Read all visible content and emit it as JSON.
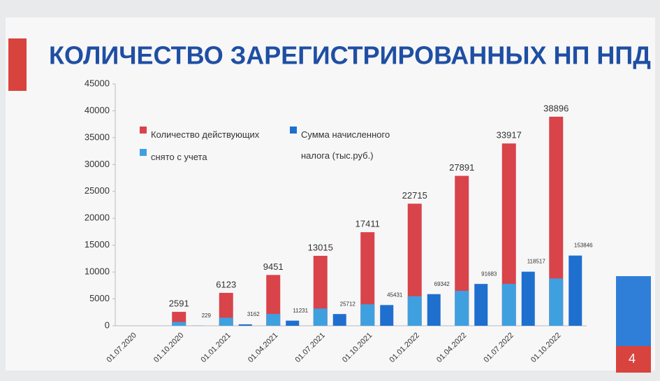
{
  "chart_data": {
    "type": "bar",
    "title": "КОЛИЧЕСТВО ЗАРЕГИСТРИРОВАННЫХ НП НПД",
    "page_number": "4",
    "categories": [
      "01.07.2020",
      "01.10.2020",
      "01.01.2021",
      "01.04.2021",
      "01.07.2021",
      "01.10.2021",
      "01.01.2022",
      "01.04.2022",
      "01.07.2022",
      "01.10.2022"
    ],
    "series": [
      {
        "name": "Количество действующих",
        "color": "#d9434a",
        "values": [
          null,
          2591,
          6123,
          9451,
          13015,
          17411,
          22715,
          27891,
          33917,
          38896
        ]
      },
      {
        "name": "снято с учета",
        "color": "#3fa0e0",
        "values": [
          null,
          700,
          1500,
          2200,
          3200,
          4000,
          5500,
          6500,
          7800,
          8800
        ]
      },
      {
        "name": "Сумма начисленного налога (тыс.руб.)",
        "color": "#1f6fcf",
        "axis": "y2",
        "values": [
          null,
          229,
          3162,
          11231,
          25712,
          45431,
          69342,
          91683,
          118517,
          153846
        ]
      }
    ],
    "ylim": [
      0,
      45000
    ],
    "yticks": [
      0,
      5000,
      10000,
      15000,
      20000,
      25000,
      30000,
      35000,
      40000,
      45000
    ],
    "y2lim": [
      0,
      530000
    ],
    "grid": false
  }
}
